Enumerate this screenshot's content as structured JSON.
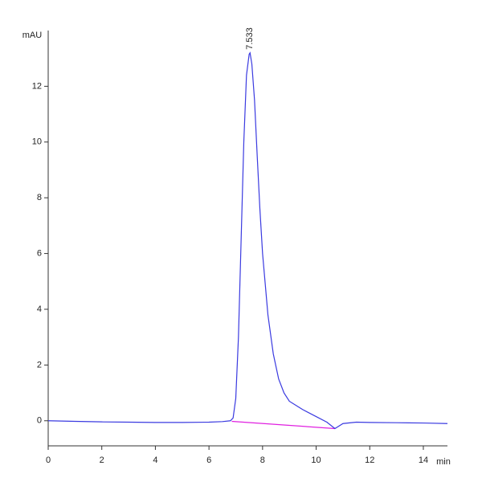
{
  "chart_data": {
    "type": "line",
    "x_label": "min",
    "y_label": "mAU",
    "x": [
      0,
      1,
      2,
      3,
      4,
      5,
      6,
      6.5,
      6.8,
      6.9,
      7.0,
      7.1,
      7.2,
      7.3,
      7.4,
      7.5,
      7.533,
      7.6,
      7.7,
      7.8,
      7.9,
      8.0,
      8.2,
      8.4,
      8.6,
      8.8,
      9.0,
      9.5,
      10.0,
      10.4,
      10.7,
      11.0,
      11.5,
      12,
      13,
      14,
      14.9
    ],
    "values": [
      0,
      -0.02,
      -0.04,
      -0.05,
      -0.06,
      -0.06,
      -0.05,
      -0.03,
      0.0,
      0.1,
      0.8,
      3.0,
      6.5,
      10.0,
      12.4,
      13.15,
      13.2,
      12.8,
      11.5,
      9.5,
      7.6,
      6.0,
      3.8,
      2.4,
      1.5,
      1.0,
      0.7,
      0.4,
      0.15,
      -0.05,
      -0.28,
      -0.1,
      -0.05,
      -0.06,
      -0.07,
      -0.08,
      -0.1
    ],
    "color": "#3a3ae0",
    "baseline": {
      "x": [
        6.85,
        10.7
      ],
      "values": [
        -0.02,
        -0.28
      ],
      "color": "#e020e0"
    },
    "annotations": [
      {
        "x": 7.533,
        "y": 13.2,
        "label": "7.533"
      }
    ],
    "xlim": [
      0,
      14.9
    ],
    "ylim": [
      -0.9,
      14
    ],
    "xticks": [
      0,
      2,
      4,
      6,
      8,
      10,
      12,
      14
    ],
    "yticks": [
      0,
      2,
      4,
      6,
      8,
      10,
      12
    ]
  }
}
